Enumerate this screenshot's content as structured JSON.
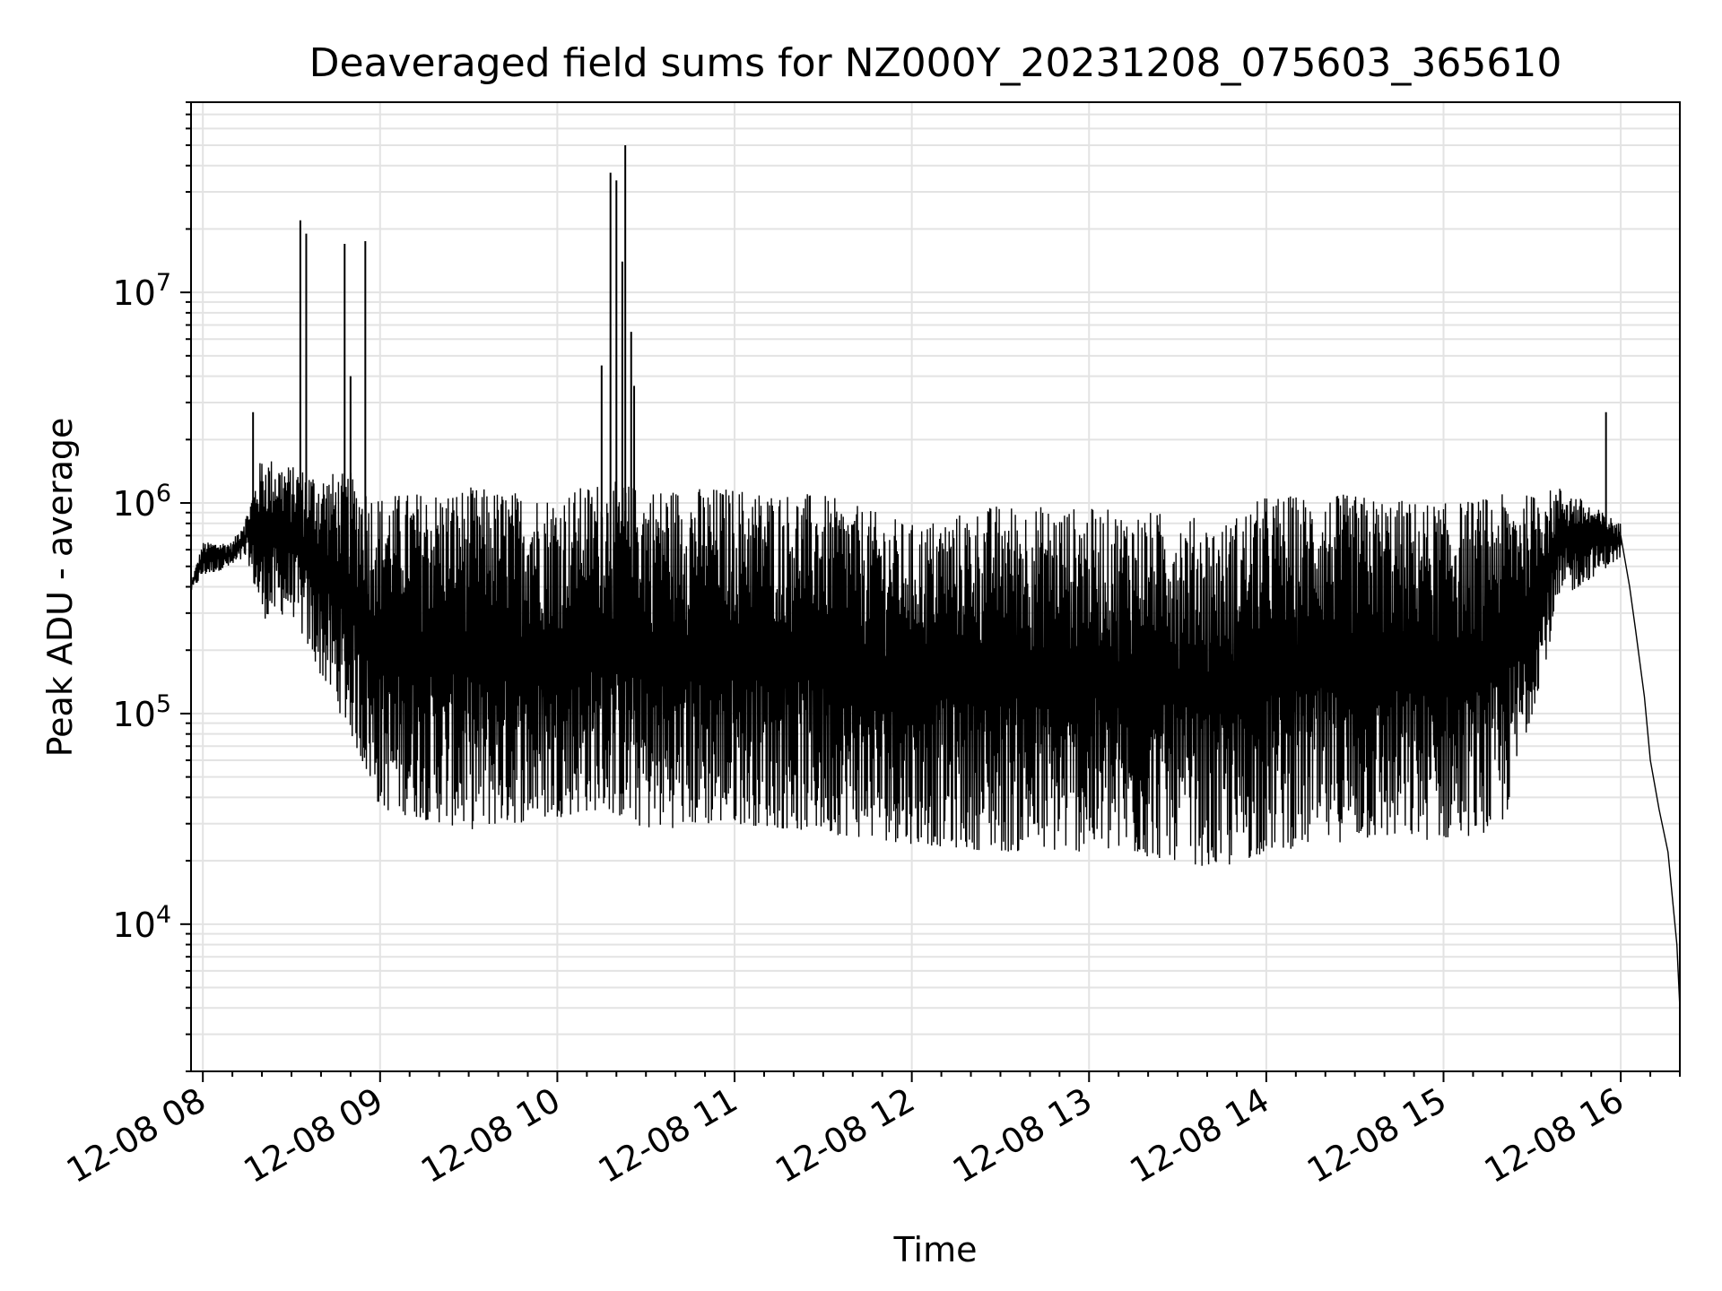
{
  "chart_data": {
    "type": "line",
    "title": "Deaveraged field sums for NZ000Y_20231208_075603_365610",
    "xlabel": "Time",
    "ylabel": "Peak ADU - average",
    "yscale": "log",
    "xlim": [
      "12-08 07:56",
      "12-08 16:20"
    ],
    "ylim": [
      2000,
      80000000
    ],
    "grid": true,
    "x_ticks": [
      {
        "t": "12-08 08:00",
        "label": "12-08 08"
      },
      {
        "t": "12-08 09:00",
        "label": "12-08 09"
      },
      {
        "t": "12-08 10:00",
        "label": "12-08 10"
      },
      {
        "t": "12-08 11:00",
        "label": "12-08 11"
      },
      {
        "t": "12-08 12:00",
        "label": "12-08 12"
      },
      {
        "t": "12-08 13:00",
        "label": "12-08 13"
      },
      {
        "t": "12-08 14:00",
        "label": "12-08 14"
      },
      {
        "t": "12-08 15:00",
        "label": "12-08 15"
      },
      {
        "t": "12-08 16:00",
        "label": "12-08 16"
      }
    ],
    "y_ticks": [
      {
        "value": 10000,
        "base": "10",
        "exp": "4"
      },
      {
        "value": 100000,
        "base": "10",
        "exp": "5"
      },
      {
        "value": 1000000,
        "base": "10",
        "exp": "6"
      },
      {
        "value": 10000000,
        "base": "10",
        "exp": "7"
      }
    ],
    "series": [
      {
        "color": "#000000",
        "envelope": [
          {
            "t": "12-08 07:56",
            "lo": 380000,
            "hi": 420000
          },
          {
            "t": "12-08 08:00",
            "lo": 450000,
            "hi": 650000
          },
          {
            "t": "12-08 08:10",
            "lo": 500000,
            "hi": 650000
          },
          {
            "t": "12-08 08:15",
            "lo": 550000,
            "hi": 900000
          },
          {
            "t": "12-08 08:20",
            "lo": 280000,
            "hi": 1700000
          },
          {
            "t": "12-08 08:30",
            "lo": 300000,
            "hi": 1500000
          },
          {
            "t": "12-08 08:40",
            "lo": 150000,
            "hi": 1400000
          },
          {
            "t": "12-08 08:50",
            "lo": 80000,
            "hi": 1400000
          },
          {
            "t": "12-08 09:00",
            "lo": 35000,
            "hi": 1100000
          },
          {
            "t": "12-08 09:30",
            "lo": 28000,
            "hi": 1200000
          },
          {
            "t": "12-08 10:00",
            "lo": 32000,
            "hi": 1100000
          },
          {
            "t": "12-08 10:15",
            "lo": 35000,
            "hi": 1300000
          },
          {
            "t": "12-08 10:30",
            "lo": 28000,
            "hi": 1200000
          },
          {
            "t": "12-08 11:00",
            "lo": 30000,
            "hi": 1200000
          },
          {
            "t": "12-08 11:30",
            "lo": 27000,
            "hi": 1100000
          },
          {
            "t": "12-08 12:00",
            "lo": 24000,
            "hi": 800000
          },
          {
            "t": "12-08 12:30",
            "lo": 22000,
            "hi": 1000000
          },
          {
            "t": "12-08 13:00",
            "lo": 22000,
            "hi": 950000
          },
          {
            "t": "12-08 13:30",
            "lo": 20000,
            "hi": 900000
          },
          {
            "t": "12-08 13:45",
            "lo": 18000,
            "hi": 800000
          },
          {
            "t": "12-08 14:00",
            "lo": 22000,
            "hi": 1100000
          },
          {
            "t": "12-08 14:30",
            "lo": 25000,
            "hi": 1100000
          },
          {
            "t": "12-08 15:00",
            "lo": 25000,
            "hi": 1000000
          },
          {
            "t": "12-08 15:20",
            "lo": 28000,
            "hi": 1100000
          },
          {
            "t": "12-08 15:30",
            "lo": 100000,
            "hi": 1100000
          },
          {
            "t": "12-08 15:40",
            "lo": 350000,
            "hi": 1200000
          },
          {
            "t": "12-08 16:00",
            "lo": 550000,
            "hi": 800000
          }
        ],
        "spikes": [
          {
            "t": "12-08 08:17",
            "value": 2700000
          },
          {
            "t": "12-08 08:33",
            "value": 22000000
          },
          {
            "t": "12-08 08:35",
            "value": 19000000
          },
          {
            "t": "12-08 08:48",
            "value": 17000000
          },
          {
            "t": "12-08 08:50",
            "value": 4000000
          },
          {
            "t": "12-08 08:55",
            "value": 17500000
          },
          {
            "t": "12-08 10:15",
            "value": 4500000
          },
          {
            "t": "12-08 10:18",
            "value": 37000000
          },
          {
            "t": "12-08 10:20",
            "value": 34000000
          },
          {
            "t": "12-08 10:22",
            "value": 14000000
          },
          {
            "t": "12-08 10:23",
            "value": 50000000
          },
          {
            "t": "12-08 10:25",
            "value": 6500000
          },
          {
            "t": "12-08 10:26",
            "value": 3600000
          },
          {
            "t": "12-08 15:55",
            "value": 2700000
          }
        ],
        "tail": [
          {
            "t": "12-08 16:00",
            "value": 700000
          },
          {
            "t": "12-08 16:03",
            "value": 400000
          },
          {
            "t": "12-08 16:05",
            "value": 250000
          },
          {
            "t": "12-08 16:08",
            "value": 120000
          },
          {
            "t": "12-08 16:10",
            "value": 60000
          },
          {
            "t": "12-08 16:13",
            "value": 35000
          },
          {
            "t": "12-08 16:16",
            "value": 22000
          },
          {
            "t": "12-08 16:19",
            "value": 8000
          },
          {
            "t": "12-08 16:20",
            "value": 4000
          }
        ]
      }
    ]
  }
}
